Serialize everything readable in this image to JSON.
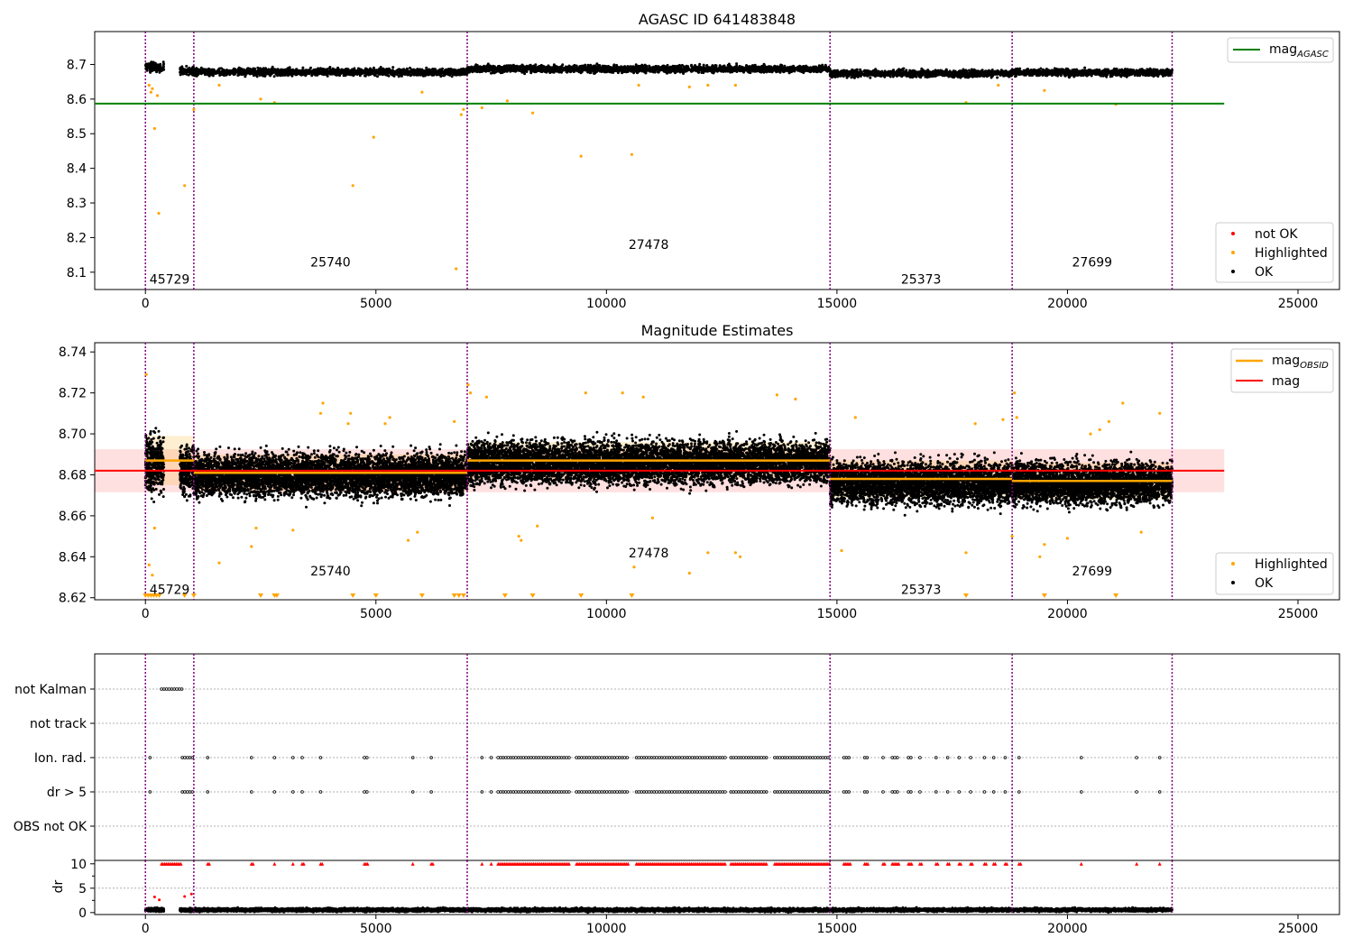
{
  "chart_data": [
    {
      "type": "scatter",
      "title": "AGASC ID 641483848",
      "xlabel": "",
      "ylabel": "",
      "xlim": [
        -1100,
        25900
      ],
      "ylim": [
        8.05,
        8.795
      ],
      "xticks": [
        0,
        5000,
        10000,
        15000,
        20000,
        25000
      ],
      "xtick_labels": [
        "0",
        "5000",
        "10000",
        "15000",
        "20000",
        "25000"
      ],
      "yticks": [
        8.1,
        8.2,
        8.3,
        8.4,
        8.5,
        8.6,
        8.7
      ],
      "ytick_labels": [
        "8.1",
        "8.2",
        "8.3",
        "8.4",
        "8.5",
        "8.6",
        "8.7"
      ],
      "obsid_boundaries": [
        0,
        1050,
        6980,
        14850,
        18800,
        22270
      ],
      "obsid_labels": [
        {
          "text": "45729",
          "x": 525,
          "y": 8.08
        },
        {
          "text": "25740",
          "x": 4015,
          "y": 8.13
        },
        {
          "text": "27478",
          "x": 10915,
          "y": 8.18
        },
        {
          "text": "25373",
          "x": 16825,
          "y": 8.08
        },
        {
          "text": "27699",
          "x": 20535,
          "y": 8.13
        }
      ],
      "mag_agasc": 8.587,
      "mag_agasc_xrange": [
        -1100,
        23400
      ],
      "ok_segments": [
        {
          "x0": 0,
          "x1": 400,
          "mean": 8.692,
          "spread": 0.012
        },
        {
          "x0": 750,
          "x1": 1050,
          "mean": 8.682,
          "spread": 0.01
        },
        {
          "x0": 1050,
          "x1": 6980,
          "mean": 8.678,
          "spread": 0.009
        },
        {
          "x0": 6980,
          "x1": 14850,
          "mean": 8.687,
          "spread": 0.009
        },
        {
          "x0": 14850,
          "x1": 18800,
          "mean": 8.674,
          "spread": 0.009
        },
        {
          "x0": 18800,
          "x1": 22270,
          "mean": 8.677,
          "spread": 0.009
        }
      ],
      "highlighted_outliers": [
        [
          80,
          8.64
        ],
        [
          120,
          8.62
        ],
        [
          150,
          8.63
        ],
        [
          200,
          8.515
        ],
        [
          260,
          8.61
        ],
        [
          290,
          8.27
        ],
        [
          850,
          8.35
        ],
        [
          1050,
          8.57
        ],
        [
          1600,
          8.64
        ],
        [
          2500,
          8.6
        ],
        [
          2800,
          8.59
        ],
        [
          4500,
          8.35
        ],
        [
          4950,
          8.49
        ],
        [
          6000,
          8.62
        ],
        [
          6740,
          8.11
        ],
        [
          6850,
          8.555
        ],
        [
          6900,
          8.57
        ],
        [
          7300,
          8.575
        ],
        [
          7850,
          8.595
        ],
        [
          8400,
          8.56
        ],
        [
          9450,
          8.435
        ],
        [
          10550,
          8.44
        ],
        [
          10700,
          8.64
        ],
        [
          11800,
          8.635
        ],
        [
          12200,
          8.64
        ],
        [
          12800,
          8.64
        ],
        [
          17800,
          8.59
        ],
        [
          18500,
          8.64
        ],
        [
          19500,
          8.625
        ],
        [
          21050,
          8.585
        ]
      ],
      "legend": [
        "mag$_{AGASC}$",
        "not OK",
        "Highlighted",
        "OK"
      ],
      "legend_placement": [
        "top-right",
        "bottom-right"
      ],
      "colors": {
        "ok": "#000000",
        "highlighted": "#ffa500",
        "not_ok": "#ff0000",
        "mag_agasc": "#008000",
        "boundary": "#800080"
      }
    },
    {
      "type": "scatter",
      "title": "Magnitude Estimates",
      "xlabel": "",
      "ylabel": "",
      "xlim": [
        -1100,
        25900
      ],
      "ylim": [
        8.619,
        8.7445
      ],
      "xticks": [
        0,
        5000,
        10000,
        15000,
        20000,
        25000
      ],
      "xtick_labels": [
        "0",
        "5000",
        "10000",
        "15000",
        "20000",
        "25000"
      ],
      "yticks": [
        8.62,
        8.64,
        8.66,
        8.68,
        8.7,
        8.72,
        8.74
      ],
      "ytick_labels": [
        "8.62",
        "8.64",
        "8.66",
        "8.68",
        "8.70",
        "8.72",
        "8.74"
      ],
      "obsid_boundaries": [
        0,
        1050,
        6980,
        14850,
        18800,
        22270
      ],
      "obsid_labels": [
        {
          "text": "45729",
          "x": 525,
          "y": 8.624
        },
        {
          "text": "25740",
          "x": 4015,
          "y": 8.633
        },
        {
          "text": "27478",
          "x": 10915,
          "y": 8.642
        },
        {
          "text": "25373",
          "x": 16825,
          "y": 8.624
        },
        {
          "text": "27699",
          "x": 20535,
          "y": 8.633
        }
      ],
      "mag": 8.682,
      "mag_band": [
        8.6715,
        8.6925
      ],
      "mag_xrange": [
        -1100,
        23400
      ],
      "mag_obsid": [
        {
          "x0": 0,
          "x1": 1050,
          "value": 8.687,
          "band": [
            8.675,
            8.699
          ]
        },
        {
          "x0": 1050,
          "x1": 6980,
          "value": 8.681,
          "band": [
            8.672,
            8.69
          ]
        },
        {
          "x0": 6980,
          "x1": 14850,
          "value": 8.687,
          "band": [
            8.678,
            8.696
          ]
        },
        {
          "x0": 14850,
          "x1": 18800,
          "value": 8.678,
          "band": [
            8.669,
            8.687
          ]
        },
        {
          "x0": 18800,
          "x1": 22270,
          "value": 8.677,
          "band": [
            8.668,
            8.686
          ]
        }
      ],
      "ok_segments": [
        {
          "x0": 0,
          "x1": 400,
          "mean": 8.686,
          "spread": 0.013
        },
        {
          "x0": 750,
          "x1": 1050,
          "mean": 8.682,
          "spread": 0.01
        },
        {
          "x0": 1050,
          "x1": 6980,
          "mean": 8.68,
          "spread": 0.009
        },
        {
          "x0": 6980,
          "x1": 14850,
          "mean": 8.686,
          "spread": 0.009
        },
        {
          "x0": 14850,
          "x1": 18800,
          "mean": 8.676,
          "spread": 0.009
        },
        {
          "x0": 18800,
          "x1": 22270,
          "mean": 8.676,
          "spread": 0.009
        }
      ],
      "highlighted_points": [
        [
          20,
          8.729
        ],
        [
          80,
          8.636
        ],
        [
          150,
          8.631
        ],
        [
          200,
          8.654
        ],
        [
          1600,
          8.637
        ],
        [
          2300,
          8.645
        ],
        [
          2400,
          8.654
        ],
        [
          3200,
          8.653
        ],
        [
          3800,
          8.71
        ],
        [
          3850,
          8.715
        ],
        [
          4400,
          8.705
        ],
        [
          4450,
          8.71
        ],
        [
          5200,
          8.705
        ],
        [
          5300,
          8.708
        ],
        [
          5700,
          8.648
        ],
        [
          5900,
          8.652
        ],
        [
          6700,
          8.706
        ],
        [
          7000,
          8.724
        ],
        [
          7050,
          8.72
        ],
        [
          7400,
          8.718
        ],
        [
          8100,
          8.65
        ],
        [
          8150,
          8.648
        ],
        [
          8500,
          8.655
        ],
        [
          9550,
          8.72
        ],
        [
          10350,
          8.72
        ],
        [
          10600,
          8.635
        ],
        [
          10800,
          8.718
        ],
        [
          11000,
          8.659
        ],
        [
          11800,
          8.632
        ],
        [
          12200,
          8.642
        ],
        [
          12800,
          8.642
        ],
        [
          12900,
          8.64
        ],
        [
          13700,
          8.719
        ],
        [
          14100,
          8.717
        ],
        [
          15100,
          8.643
        ],
        [
          15400,
          8.708
        ],
        [
          17800,
          8.642
        ],
        [
          18000,
          8.705
        ],
        [
          18600,
          8.707
        ],
        [
          18800,
          8.65
        ],
        [
          18850,
          8.72
        ],
        [
          18900,
          8.708
        ],
        [
          19400,
          8.64
        ],
        [
          19500,
          8.646
        ],
        [
          20000,
          8.649
        ],
        [
          20500,
          8.7
        ],
        [
          20700,
          8.702
        ],
        [
          20900,
          8.706
        ],
        [
          21200,
          8.715
        ],
        [
          21600,
          8.652
        ],
        [
          22000,
          8.71
        ]
      ],
      "clipped_markers_x": [
        0,
        60,
        120,
        180,
        240,
        300,
        850,
        1050,
        2500,
        2800,
        2850,
        4500,
        5000,
        6000,
        6700,
        6800,
        6900,
        7800,
        8400,
        9450,
        10550,
        17800,
        19500,
        21050
      ],
      "legend": [
        "mag$_{OBSID}$",
        "mag",
        "Highlighted",
        "OK"
      ],
      "legend_placement": [
        "top-right",
        "bottom-right"
      ],
      "colors": {
        "ok": "#000000",
        "highlighted": "#ffa500",
        "mag": "#ff0000",
        "mag_obsid": "#ffa500",
        "boundary": "#800080"
      }
    },
    {
      "type": "scatter",
      "title": "",
      "xlabel": "",
      "ylabel": "",
      "xlim": [
        -1100,
        25900
      ],
      "ytick_labels": [
        "not Kalman",
        "not track",
        "Ion. rad.",
        "dr > 5",
        "OBS not OK"
      ],
      "obsid_boundaries": [
        0,
        1050,
        6980,
        14850,
        18800,
        22270
      ],
      "flags": {
        "not Kalman": [
          [
            350,
            800
          ]
        ],
        "not track": [],
        "Ion. rad.": [
          [
            100,
            100
          ],
          [
            800,
            1050
          ],
          [
            1350,
            1400
          ],
          [
            2300,
            2350
          ],
          [
            2800,
            2800
          ],
          [
            3200,
            3200
          ],
          [
            3400,
            3450
          ],
          [
            3800,
            3850
          ],
          [
            4750,
            4850
          ],
          [
            5800,
            5800
          ],
          [
            6200,
            6250
          ],
          [
            7300,
            7300
          ],
          [
            7500,
            7500
          ],
          [
            7650,
            9200
          ],
          [
            9350,
            10500
          ],
          [
            10650,
            12600
          ],
          [
            12700,
            13500
          ],
          [
            13650,
            14850
          ],
          [
            15150,
            15300
          ],
          [
            15600,
            15700
          ],
          [
            16000,
            16050
          ],
          [
            16200,
            16350
          ],
          [
            16550,
            16650
          ],
          [
            16800,
            16850
          ],
          [
            17150,
            17200
          ],
          [
            17400,
            17450
          ],
          [
            17650,
            17700
          ],
          [
            17900,
            17950
          ],
          [
            18200,
            18250
          ],
          [
            18400,
            18450
          ],
          [
            18650,
            18700
          ],
          [
            18950,
            19000
          ],
          [
            20300,
            20300
          ],
          [
            21500,
            21500
          ],
          [
            22000,
            22000
          ]
        ],
        "dr > 5": [
          [
            100,
            100
          ],
          [
            800,
            1050
          ],
          [
            1350,
            1400
          ],
          [
            2300,
            2350
          ],
          [
            2800,
            2800
          ],
          [
            3200,
            3200
          ],
          [
            3400,
            3450
          ],
          [
            3800,
            3850
          ],
          [
            4750,
            4850
          ],
          [
            5800,
            5800
          ],
          [
            6200,
            6250
          ],
          [
            7300,
            7300
          ],
          [
            7500,
            7500
          ],
          [
            7650,
            9200
          ],
          [
            9350,
            10500
          ],
          [
            10650,
            12600
          ],
          [
            12700,
            13500
          ],
          [
            13650,
            14850
          ],
          [
            15150,
            15300
          ],
          [
            15600,
            15700
          ],
          [
            16000,
            16050
          ],
          [
            16200,
            16350
          ],
          [
            16550,
            16650
          ],
          [
            16800,
            16850
          ],
          [
            17150,
            17200
          ],
          [
            17400,
            17450
          ],
          [
            17650,
            17700
          ],
          [
            17900,
            17950
          ],
          [
            18200,
            18250
          ],
          [
            18400,
            18450
          ],
          [
            18650,
            18700
          ],
          [
            18950,
            19000
          ],
          [
            20300,
            20300
          ],
          [
            21500,
            21500
          ],
          [
            22000,
            22000
          ]
        ],
        "OBS not OK": []
      },
      "colors": {
        "flag": "#000000",
        "grid": "#b0b0b0",
        "boundary": "#800080"
      }
    },
    {
      "type": "scatter",
      "title": "",
      "xlabel": "",
      "ylabel": "dr",
      "xlim": [
        -1100,
        25900
      ],
      "ylim": [
        -0.4,
        10.7
      ],
      "xticks": [
        0,
        5000,
        10000,
        15000,
        20000,
        25000
      ],
      "xtick_labels": [
        "0",
        "5000",
        "10000",
        "15000",
        "20000",
        "25000"
      ],
      "yticks": [
        0,
        5,
        10
      ],
      "ytick_labels": [
        "0",
        "5",
        "10"
      ],
      "obsid_boundaries": [
        0,
        1050,
        6980,
        14850,
        18800,
        22270
      ],
      "ok_segments": [
        {
          "x0": 0,
          "x1": 400,
          "mean": 0.6,
          "spread": 0.35
        },
        {
          "x0": 750,
          "x1": 22270,
          "mean": 0.55,
          "spread": 0.3
        }
      ],
      "not_ok_clipped": [
        [
          350,
          800
        ],
        [
          1350,
          1400
        ],
        [
          2300,
          2350
        ],
        [
          2800,
          2800
        ],
        [
          3200,
          3200
        ],
        [
          3400,
          3450
        ],
        [
          3800,
          3850
        ],
        [
          4750,
          4850
        ],
        [
          5800,
          5800
        ],
        [
          6200,
          6250
        ],
        [
          7300,
          7300
        ],
        [
          7500,
          7500
        ],
        [
          7650,
          9200
        ],
        [
          9350,
          10500
        ],
        [
          10650,
          12600
        ],
        [
          12700,
          13500
        ],
        [
          13650,
          14850
        ],
        [
          15150,
          15300
        ],
        [
          15600,
          15700
        ],
        [
          16000,
          16050
        ],
        [
          16200,
          16350
        ],
        [
          16550,
          16650
        ],
        [
          16800,
          16850
        ],
        [
          17150,
          17200
        ],
        [
          17400,
          17450
        ],
        [
          17650,
          17700
        ],
        [
          17900,
          17950
        ],
        [
          18200,
          18250
        ],
        [
          18400,
          18450
        ],
        [
          18650,
          18700
        ],
        [
          18950,
          19000
        ],
        [
          20300,
          20300
        ],
        [
          21500,
          21500
        ],
        [
          22000,
          22000
        ]
      ],
      "not_ok_points": [
        [
          200,
          3.2
        ],
        [
          300,
          2.6
        ],
        [
          850,
          3.3
        ],
        [
          1000,
          3.8
        ]
      ],
      "colors": {
        "ok": "#000000",
        "not_ok": "#ff0000",
        "boundary": "#800080"
      }
    }
  ]
}
